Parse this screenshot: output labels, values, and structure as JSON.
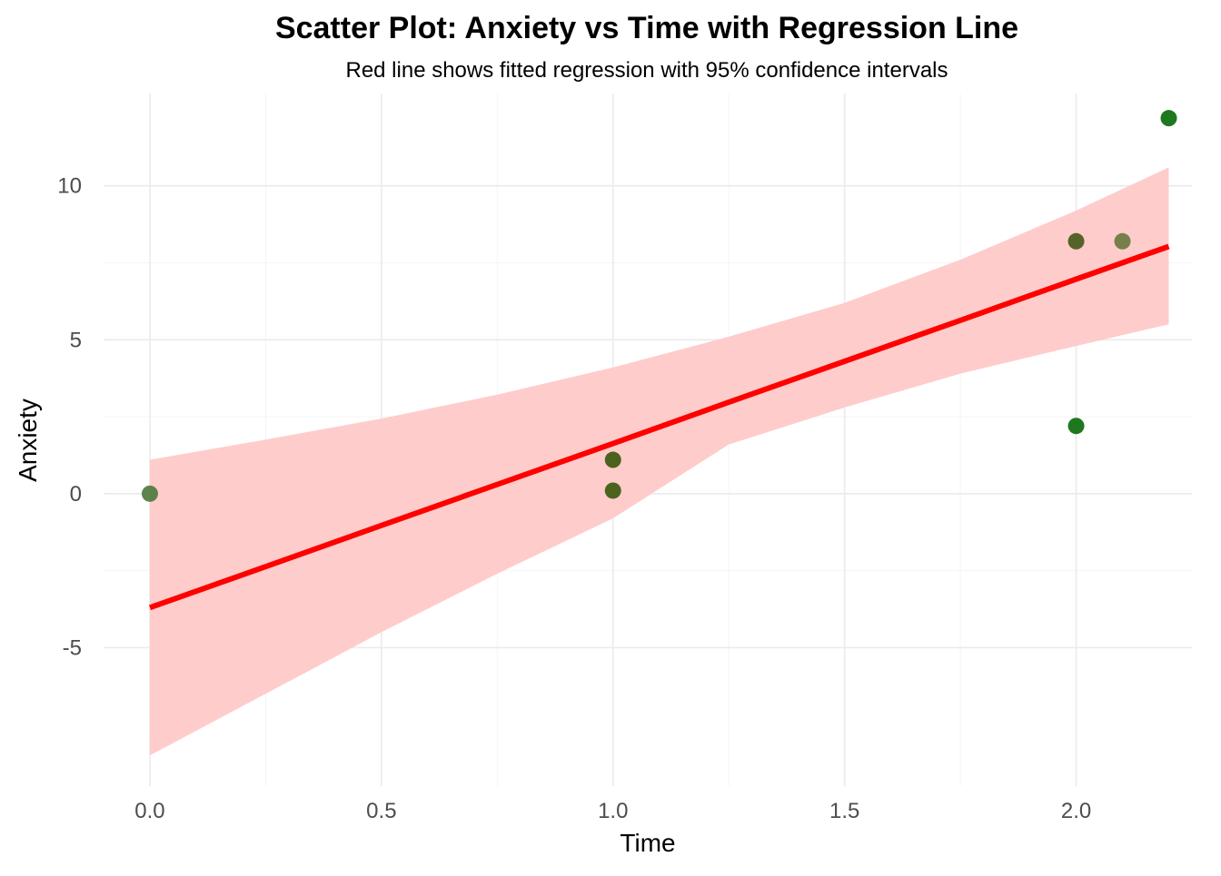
{
  "chart_data": {
    "type": "scatter",
    "title": "Scatter Plot: Anxiety vs Time with Regression Line",
    "subtitle": "Red line shows fitted regression with 95% confidence intervals",
    "xlabel": "Time",
    "ylabel": "Anxiety",
    "xlim": [
      -0.1,
      2.25
    ],
    "ylim": [
      -9.5,
      13
    ],
    "x_ticks": [
      0.0,
      0.5,
      1.0,
      1.5,
      2.0
    ],
    "x_tick_labels": [
      "0.0",
      "0.5",
      "1.0",
      "1.5",
      "2.0"
    ],
    "y_ticks": [
      -5,
      0,
      5,
      10
    ],
    "y_tick_labels": [
      "-5",
      "0",
      "5",
      "10"
    ],
    "grid": true,
    "legend": "none",
    "points": [
      {
        "x": 0.0,
        "y": 0.0,
        "color": "#4f7a40"
      },
      {
        "x": 1.0,
        "y": 1.1,
        "color": "#3d5a0f"
      },
      {
        "x": 1.0,
        "y": 0.1,
        "color": "#3d5a0f"
      },
      {
        "x": 2.0,
        "y": 8.2,
        "color": "#475a1a"
      },
      {
        "x": 2.1,
        "y": 8.2,
        "color": "#6b7a40"
      },
      {
        "x": 2.0,
        "y": 2.2,
        "color": "#0b6e0b"
      },
      {
        "x": 2.2,
        "y": 12.2,
        "color": "#0b6e0b"
      }
    ],
    "regression": {
      "color": "#ff0000",
      "band_color": "#ffcccc",
      "x": [
        0.0,
        0.25,
        0.5,
        0.75,
        1.0,
        1.25,
        1.5,
        1.75,
        2.0,
        2.2
      ],
      "fit": [
        -3.7,
        -2.37,
        -1.03,
        0.3,
        1.63,
        2.97,
        4.3,
        5.63,
        6.97,
        8.03
      ],
      "lower": [
        -8.5,
        -6.5,
        -4.5,
        -2.6,
        -0.8,
        1.6,
        2.8,
        3.9,
        4.8,
        5.5
      ],
      "upper": [
        1.1,
        1.76,
        2.44,
        3.22,
        4.1,
        5.1,
        6.2,
        7.6,
        9.2,
        10.6
      ]
    }
  }
}
